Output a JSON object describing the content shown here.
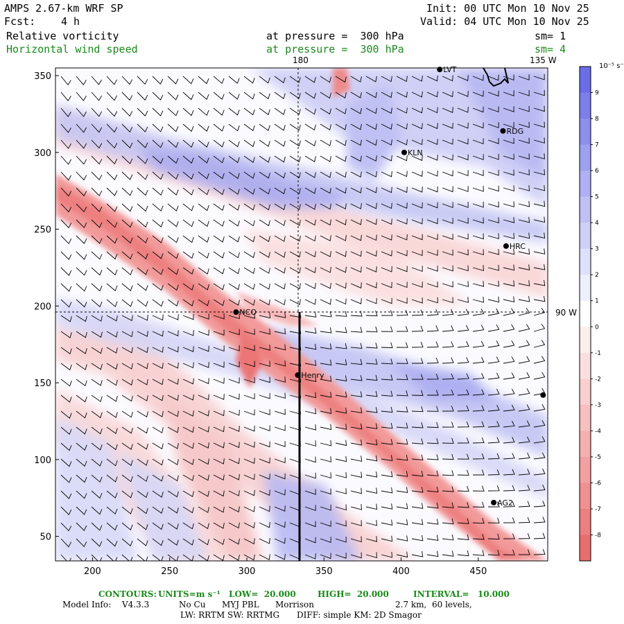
{
  "header": {
    "model": "AMPS 2.67-km WRF SP",
    "forecast_label": "Fcst:",
    "forecast_value": "4 h",
    "init": "Init: 00 UTC Mon 10 Nov 25",
    "valid": "Valid: 04 UTC Mon 10 Nov 25",
    "field1": "Relative vorticity",
    "field1_level": "at pressure =  300 hPa",
    "field1_sm": "sm= 1",
    "field2": "Horizontal wind speed",
    "field2_level": "at pressure =  300 hPa",
    "field2_sm": "sm= 4"
  },
  "map": {
    "top_labels": [
      "180",
      "135 W"
    ],
    "right_label": "90 W",
    "x_ticks": [
      "200",
      "250",
      "300",
      "350",
      "400",
      "450"
    ],
    "y_ticks": [
      "350",
      "300",
      "250",
      "200",
      "150",
      "100",
      "50"
    ],
    "x_range": [
      176,
      495
    ],
    "y_range": [
      34,
      355
    ],
    "stations": [
      {
        "name": "LVT",
        "x": 425,
        "y": 354
      },
      {
        "name": "RDG",
        "x": 466,
        "y": 314
      },
      {
        "name": "KLN",
        "x": 402,
        "y": 300
      },
      {
        "name": "HRC",
        "x": 468,
        "y": 239
      },
      {
        "name": "NCO",
        "x": 293,
        "y": 196
      },
      {
        "name": "Henry",
        "x": 333,
        "y": 155
      },
      {
        "name": "AG2",
        "x": 460,
        "y": 72
      },
      {
        "name": "",
        "x": 492,
        "y": 142
      }
    ],
    "cross_section_x": 334,
    "cross_section_y_top": 196
  },
  "colorbar": {
    "unit": "10⁻⁵ s⁻¹",
    "labels": [
      "9",
      "8",
      "7",
      "6",
      "5",
      "4",
      "3",
      "2",
      "1",
      "0",
      "-1",
      "-2",
      "-3",
      "-4",
      "-5",
      "-6",
      "-7",
      "-8"
    ],
    "colors": [
      "#6b6de8",
      "#7c7ee9",
      "#8d8fed",
      "#9ea0f0",
      "#afb0f3",
      "#bfc0f5",
      "#cfd0f8",
      "#dfe0fb",
      "#eeeffd",
      "#ffffff",
      "#fdeeee",
      "#fbdfdf",
      "#f9cfcf",
      "#f7bfbf",
      "#f5afaf",
      "#f3a0a0",
      "#f09090",
      "#ec7f7f",
      "#e86e6e"
    ]
  },
  "footer": {
    "contours_label": "CONTOURS:",
    "units": "UNITS=m s⁻¹",
    "low": "LOW=  20.000",
    "high": "HIGH=  20.000",
    "interval": "INTERVAL=   10.000",
    "model_info_label": "Model Info:",
    "version": "V4.3.3",
    "cu": "No Cu",
    "pbl": "MYJ PBL",
    "mp": "Morrison",
    "res": "2.7 km,  60 levels,",
    "rad": "LW: RRTM SW: RRTMG",
    "diff": "DIFF: simple KM: 2D Smagor"
  }
}
